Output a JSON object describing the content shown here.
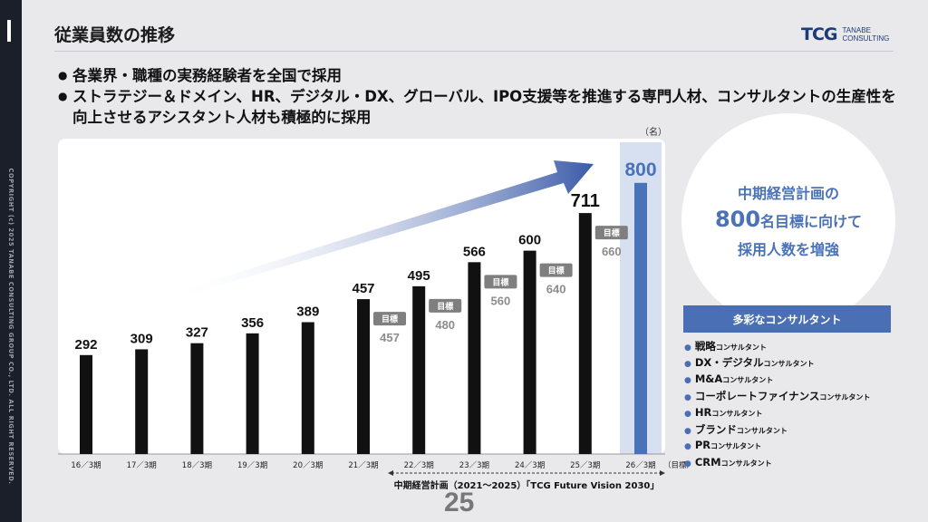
{
  "sidebar": {
    "copyright": "COPYRIGHT (c) 2025 TANABE CONSULTING GROUP CO., LTD. ALL RIGHT RESERVED."
  },
  "header": {
    "title": "従業員数の推移",
    "logo_mark": "TCG",
    "logo_line1": "TANABE",
    "logo_line2": "CONSULTING"
  },
  "bullets": [
    "各業界・職種の実務経験者を全国で採用",
    "ストラテジー＆ドメイン、HR、デジタル・DX、グローバル、IPO支援等を推進する専門人材、コンサルタントの生産性を向上させるアシスタント人材も積極的に採用"
  ],
  "chart_data": {
    "type": "bar",
    "unit_label": "（名）",
    "categories": [
      "16／3期",
      "17／3期",
      "18／3期",
      "19／3期",
      "20／3期",
      "21／3期",
      "22／3期",
      "23／3期",
      "24／3期",
      "25／3期",
      "26／3期"
    ],
    "series": [
      {
        "values": [
          292,
          309,
          327,
          356,
          389,
          457,
          495,
          566,
          600,
          711,
          800
        ]
      }
    ],
    "highlight_category": "26／3期",
    "target_suffix": "（目標）",
    "targets_label": "目標",
    "targets": [
      {
        "category": "21／3期",
        "value": 457
      },
      {
        "category": "22／3期",
        "value": 480
      },
      {
        "category": "23／3期",
        "value": 560
      },
      {
        "category": "24／3期",
        "value": 640
      },
      {
        "category": "25／3期",
        "value": 660
      }
    ],
    "colors": {
      "bar": "#111111",
      "highlight_bar": "#4a72b8",
      "highlight_bg": "#d6e0f0",
      "target_badge": "#7f7f7f",
      "target_value": "#8c8c8c",
      "arrow": "#3a5aa8"
    }
  },
  "period": {
    "label": "中期経営計画（2021～2025）「TCG Future Vision 2030」"
  },
  "page_number": "25",
  "circle": {
    "line1": "中期経営計画の",
    "big": "800",
    "line2_rest": "名目標に向けて",
    "line3": "採用人数を増強"
  },
  "consultants": {
    "header": "多彩なコンサルタント",
    "items": [
      {
        "main": "戦略",
        "small": "コンサルタント"
      },
      {
        "main": "DX・デジタル",
        "small": "コンサルタント"
      },
      {
        "main": "M&A",
        "small": "コンサルタント"
      },
      {
        "main": "コーポレートファイナンス",
        "small": "コンサルタント"
      },
      {
        "main": "HR",
        "small": "コンサルタント"
      },
      {
        "main": "ブランド",
        "small": "コンサルタント"
      },
      {
        "main": "PR",
        "small": "コンサルタント"
      },
      {
        "main": "CRM",
        "small": "コンサルタント"
      }
    ]
  }
}
